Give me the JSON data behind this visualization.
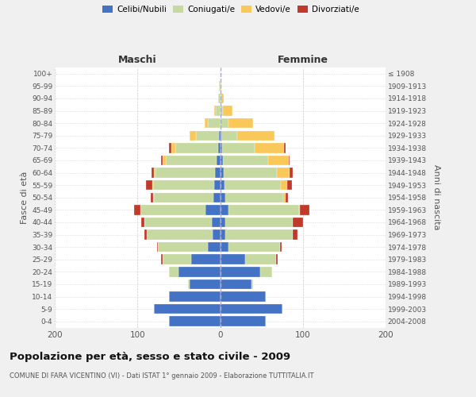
{
  "age_groups": [
    "0-4",
    "5-9",
    "10-14",
    "15-19",
    "20-24",
    "25-29",
    "30-34",
    "35-39",
    "40-44",
    "45-49",
    "50-54",
    "55-59",
    "60-64",
    "65-69",
    "70-74",
    "75-79",
    "80-84",
    "85-89",
    "90-94",
    "95-99",
    "100+"
  ],
  "birth_years": [
    "2004-2008",
    "1999-2003",
    "1994-1998",
    "1989-1993",
    "1984-1988",
    "1979-1983",
    "1974-1978",
    "1969-1973",
    "1964-1968",
    "1959-1963",
    "1954-1958",
    "1949-1953",
    "1944-1948",
    "1939-1943",
    "1934-1938",
    "1929-1933",
    "1924-1928",
    "1919-1923",
    "1914-1918",
    "1909-1913",
    "≤ 1908"
  ],
  "male": {
    "celibi": [
      62,
      80,
      62,
      37,
      50,
      35,
      15,
      9,
      10,
      18,
      8,
      7,
      6,
      4,
      2,
      1,
      0,
      0,
      0,
      0,
      0
    ],
    "coniugati": [
      0,
      0,
      0,
      2,
      12,
      35,
      60,
      80,
      82,
      78,
      72,
      74,
      72,
      62,
      52,
      28,
      15,
      5,
      2,
      1,
      0
    ],
    "vedovi": [
      0,
      0,
      0,
      0,
      0,
      0,
      0,
      0,
      0,
      0,
      1,
      1,
      2,
      4,
      5,
      8,
      4,
      2,
      0,
      0,
      0
    ],
    "divorziati": [
      0,
      0,
      0,
      0,
      0,
      1,
      1,
      3,
      3,
      8,
      3,
      8,
      3,
      1,
      3,
      0,
      0,
      0,
      0,
      0,
      0
    ]
  },
  "female": {
    "nubili": [
      55,
      75,
      55,
      38,
      48,
      30,
      10,
      6,
      6,
      10,
      6,
      5,
      4,
      3,
      2,
      1,
      0,
      0,
      0,
      0,
      0
    ],
    "coniugate": [
      0,
      0,
      0,
      2,
      15,
      38,
      62,
      82,
      82,
      85,
      70,
      68,
      65,
      55,
      40,
      20,
      10,
      3,
      1,
      0,
      0
    ],
    "vedove": [
      0,
      0,
      0,
      0,
      0,
      0,
      0,
      0,
      0,
      1,
      3,
      8,
      15,
      25,
      35,
      45,
      30,
      12,
      3,
      1,
      0
    ],
    "divorziate": [
      0,
      0,
      0,
      0,
      0,
      2,
      2,
      6,
      12,
      12,
      3,
      6,
      4,
      1,
      2,
      0,
      0,
      0,
      0,
      0,
      0
    ]
  },
  "colors": {
    "celibi": "#4472C4",
    "coniugati": "#C5D9A0",
    "vedovi": "#FAC858",
    "divorziati": "#C0392B"
  },
  "xlim": 200,
  "title": "Popolazione per età, sesso e stato civile - 2009",
  "subtitle": "COMUNE DI FARA VICENTINO (VI) - Dati ISTAT 1° gennaio 2009 - Elaborazione TUTTITALIA.IT",
  "ylabel_left": "Fasce di età",
  "ylabel_right": "Anni di nascita",
  "xlabel_left": "Maschi",
  "xlabel_right": "Femmine",
  "bg_color": "#f0f0f0",
  "plot_bg": "#ffffff"
}
